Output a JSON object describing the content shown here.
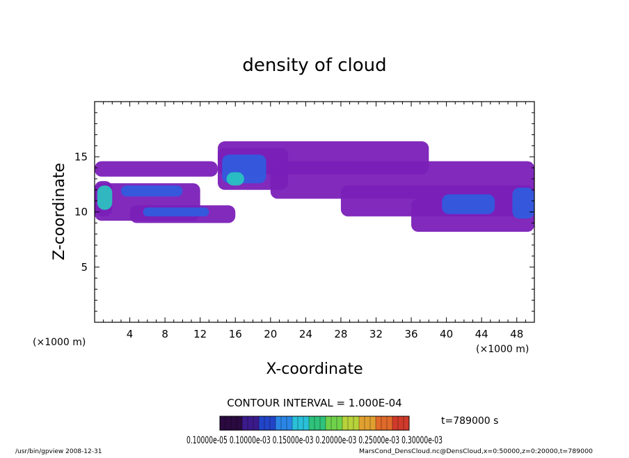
{
  "chart_data": {
    "type": "heatmap",
    "title": "density of cloud",
    "xlabel": "X-coordinate",
    "ylabel": "Z-coordinate",
    "x_unit": "(×1000 m)",
    "y_unit": "(×1000 m)",
    "xlim": [
      0,
      50
    ],
    "ylim": [
      0,
      20
    ],
    "x_ticks": [
      4,
      8,
      12,
      16,
      20,
      24,
      28,
      32,
      36,
      40,
      44,
      48
    ],
    "y_ticks": [
      5,
      10,
      15
    ],
    "x_tick_labels": [
      "4",
      "8",
      "12",
      "16",
      "20",
      "24",
      "28",
      "32",
      "36",
      "40",
      "44",
      "48"
    ],
    "y_tick_labels": [
      "5",
      "10",
      "15"
    ],
    "contour_interval_text": "CONTOUR INTERVAL = 1.000E-04",
    "time_text": "t=789000 s",
    "colorbar_labels_text": "0.10000e-05 0.10000e-03 0.15000e-03 0.20000e-03 0.25000e-03 0.30000e-03",
    "colorbar_colors": [
      "#2a0a40",
      "#3b1a8c",
      "#2244c8",
      "#2a86e6",
      "#29c0d8",
      "#2ec27a",
      "#6fd24a",
      "#b7d23a",
      "#e0a030",
      "#e06a2a",
      "#d03a2a"
    ],
    "cloud_bands": [
      {
        "x": [
          0,
          14
        ],
        "z": [
          13.2,
          14.6
        ],
        "level": 1
      },
      {
        "x": [
          0,
          2
        ],
        "z": [
          9.6,
          12.8
        ],
        "level": 1
      },
      {
        "x": [
          0,
          12
        ],
        "z": [
          9.2,
          12.6
        ],
        "level": 1
      },
      {
        "x": [
          14,
          38
        ],
        "z": [
          13.4,
          16.4
        ],
        "level": 1
      },
      {
        "x": [
          14,
          22
        ],
        "z": [
          12.0,
          15.8
        ],
        "level": 1
      },
      {
        "x": [
          20,
          50
        ],
        "z": [
          11.2,
          14.6
        ],
        "level": 1
      },
      {
        "x": [
          28,
          50
        ],
        "z": [
          9.6,
          12.4
        ],
        "level": 1
      },
      {
        "x": [
          36,
          50
        ],
        "z": [
          8.2,
          11.2
        ],
        "level": 1
      },
      {
        "x": [
          4,
          16
        ],
        "z": [
          9.0,
          10.6
        ],
        "level": 1
      },
      {
        "x": [
          0.3,
          2.0
        ],
        "z": [
          10.2,
          12.4
        ],
        "level": 3
      },
      {
        "x": [
          14.5,
          19.5
        ],
        "z": [
          12.6,
          15.2
        ],
        "level": 2
      },
      {
        "x": [
          15.0,
          17.0
        ],
        "z": [
          12.4,
          13.6
        ],
        "level": 3
      },
      {
        "x": [
          39.5,
          45.5
        ],
        "z": [
          9.8,
          11.6
        ],
        "level": 2
      },
      {
        "x": [
          47.5,
          50.0
        ],
        "z": [
          9.4,
          12.2
        ],
        "level": 2
      },
      {
        "x": [
          5.5,
          13.0
        ],
        "z": [
          9.6,
          10.4
        ],
        "level": 2
      },
      {
        "x": [
          3.0,
          10.0
        ],
        "z": [
          11.4,
          12.4
        ],
        "level": 2
      }
    ]
  },
  "footer": {
    "left_text": "/usr/bin/gpview  2008-12-31",
    "right_text": "MarsCond_DensCloud.nc@DensCloud,x=0:50000,z=0:20000,t=789000"
  }
}
